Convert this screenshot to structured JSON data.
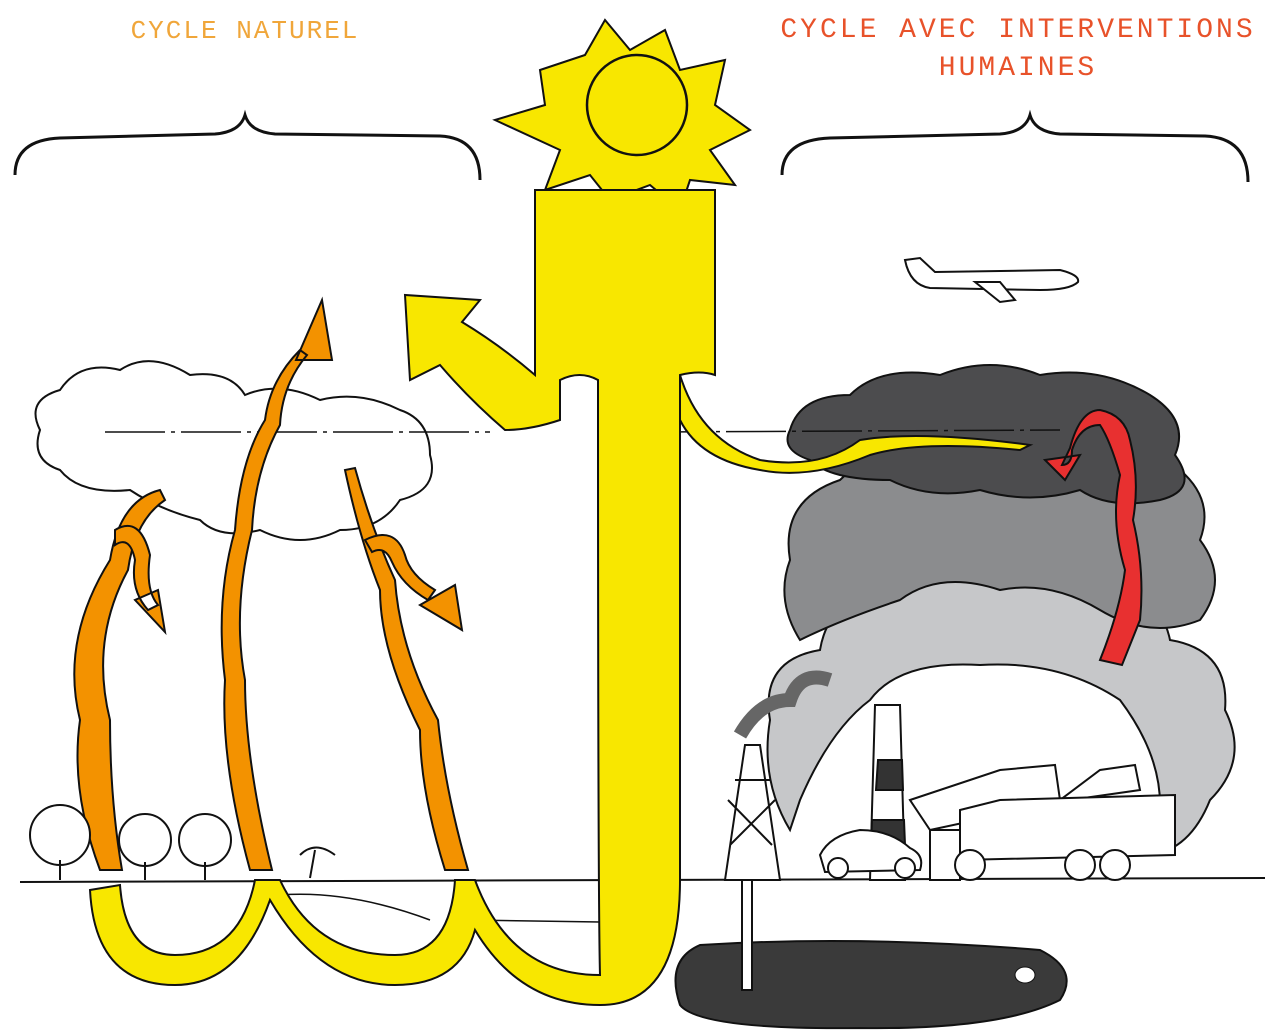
{
  "labels": {
    "natural": "CYCLE NATUREL",
    "human": "CYCLE AVEC INTERVENTIONS HUMAINES"
  }
}
